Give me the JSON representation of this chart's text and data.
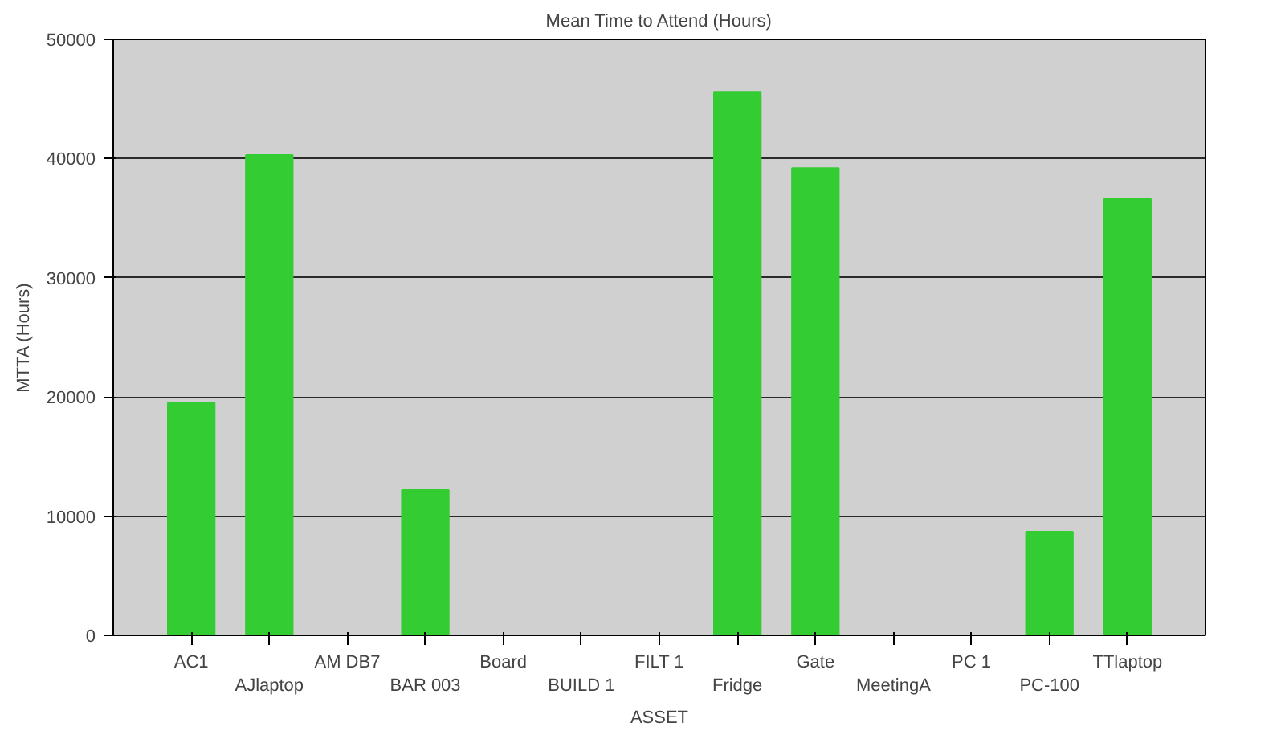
{
  "chart_data": {
    "type": "bar",
    "title": "Mean Time to Attend (Hours)",
    "xlabel": "ASSET",
    "ylabel": "MTTA (Hours)",
    "categories": [
      "AC1",
      "AJlaptop",
      "AM DB7",
      "BAR 003",
      "Board",
      "BUILD 1",
      "FILT 1",
      "Fridge",
      "Gate",
      "MeetingA",
      "PC 1",
      "PC-100",
      "TTlaptop"
    ],
    "values": [
      19500,
      40300,
      0,
      12200,
      0,
      0,
      0,
      45600,
      39200,
      0,
      0,
      8700,
      36600
    ],
    "color": "#33cc33",
    "ylim": [
      0,
      50000
    ],
    "yticks": [
      0,
      10000,
      20000,
      30000,
      40000,
      50000
    ],
    "grid": "y"
  }
}
